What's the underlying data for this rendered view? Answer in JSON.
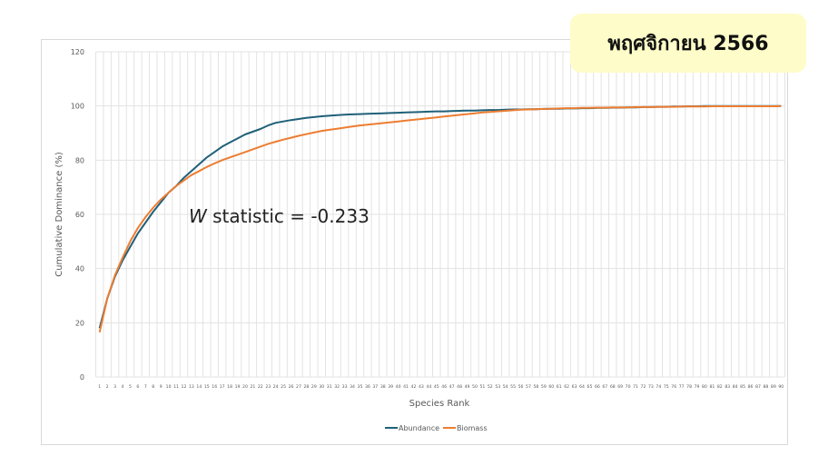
{
  "badge": {
    "text": "พฤศจิกายน 2566",
    "color": "#fefcc8"
  },
  "annotation": {
    "symbol": "W",
    "text": "statistic = -0.233"
  },
  "chart_data": {
    "type": "line",
    "title": "",
    "xlabel": "Species Rank",
    "ylabel": "Cumulative Dominance (%)",
    "ylim": [
      0,
      120
    ],
    "yticks": [
      0,
      20,
      40,
      60,
      80,
      100,
      120
    ],
    "x_categories_range": [
      1,
      90
    ],
    "grid": true,
    "legend": "bottom",
    "series": [
      {
        "name": "Abundance",
        "color": "#1f6079",
        "values": [
          18,
          29,
          37,
          43,
          48,
          53,
          57,
          61,
          64.5,
          68,
          70.5,
          73.5,
          76,
          78.5,
          81,
          83,
          85,
          86.5,
          88,
          89.5,
          90.5,
          91.5,
          92.8,
          93.8,
          94.3,
          94.8,
          95.2,
          95.6,
          95.9,
          96.2,
          96.4,
          96.6,
          96.8,
          96.9,
          97.0,
          97.1,
          97.2,
          97.3,
          97.4,
          97.5,
          97.6,
          97.7,
          97.8,
          97.9,
          98.0,
          98.0,
          98.1,
          98.2,
          98.3,
          98.3,
          98.4,
          98.5,
          98.5,
          98.6,
          98.7,
          98.7,
          98.8,
          98.8,
          98.9,
          99.0,
          99.0,
          99.1,
          99.1,
          99.2,
          99.2,
          99.3,
          99.3,
          99.4,
          99.4,
          99.5,
          99.5,
          99.6,
          99.6,
          99.7,
          99.7,
          99.8,
          99.8,
          99.9,
          99.9,
          100,
          100,
          100,
          100,
          100,
          100,
          100,
          100,
          100,
          100,
          100
        ]
      },
      {
        "name": "Biomass",
        "color": "#ed7d31",
        "values": [
          16.5,
          29,
          37.5,
          44,
          50,
          55,
          59,
          62.5,
          65.5,
          68,
          70.5,
          72.5,
          74.5,
          76,
          77.5,
          78.8,
          80,
          81,
          82,
          83,
          84,
          85,
          86,
          86.8,
          87.6,
          88.3,
          89,
          89.6,
          90.2,
          90.8,
          91.2,
          91.6,
          92.0,
          92.4,
          92.8,
          93.1,
          93.4,
          93.7,
          94.0,
          94.3,
          94.6,
          94.9,
          95.2,
          95.5,
          95.8,
          96.1,
          96.4,
          96.7,
          97.0,
          97.3,
          97.6,
          97.8,
          98.0,
          98.2,
          98.4,
          98.6,
          98.7,
          98.8,
          98.9,
          99.0,
          99.1,
          99.2,
          99.2,
          99.3,
          99.3,
          99.4,
          99.4,
          99.5,
          99.5,
          99.5,
          99.6,
          99.6,
          99.6,
          99.7,
          99.7,
          99.7,
          99.8,
          99.8,
          99.8,
          99.8,
          99.9,
          99.9,
          99.9,
          99.9,
          99.9,
          99.9,
          99.9,
          99.9,
          99.9,
          100
        ]
      }
    ]
  }
}
